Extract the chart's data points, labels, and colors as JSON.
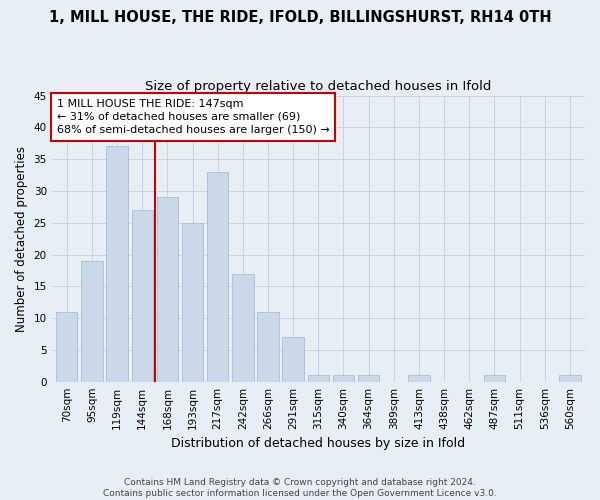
{
  "title": "1, MILL HOUSE, THE RIDE, IFOLD, BILLINGSHURST, RH14 0TH",
  "subtitle": "Size of property relative to detached houses in Ifold",
  "xlabel": "Distribution of detached houses by size in Ifold",
  "ylabel": "Number of detached properties",
  "bar_labels": [
    "70sqm",
    "95sqm",
    "119sqm",
    "144sqm",
    "168sqm",
    "193sqm",
    "217sqm",
    "242sqm",
    "266sqm",
    "291sqm",
    "315sqm",
    "340sqm",
    "364sqm",
    "389sqm",
    "413sqm",
    "438sqm",
    "462sqm",
    "487sqm",
    "511sqm",
    "536sqm",
    "560sqm"
  ],
  "bar_values": [
    11,
    19,
    37,
    27,
    29,
    25,
    33,
    17,
    11,
    7,
    1,
    1,
    1,
    0,
    1,
    0,
    0,
    1,
    0,
    0,
    1
  ],
  "bar_color": "#c9d9ea",
  "bar_edge_color": "#a8bfd0",
  "vline_x": 3.5,
  "vline_color": "#cc0000",
  "ylim": [
    0,
    45
  ],
  "yticks": [
    0,
    5,
    10,
    15,
    20,
    25,
    30,
    35,
    40,
    45
  ],
  "annotation_text": "1 MILL HOUSE THE RIDE: 147sqm\n← 31% of detached houses are smaller (69)\n68% of semi-detached houses are larger (150) →",
  "annotation_box_facecolor": "#ffffff",
  "annotation_box_edgecolor": "#cc0000",
  "footer": "Contains HM Land Registry data © Crown copyright and database right 2024.\nContains public sector information licensed under the Open Government Licence v3.0.",
  "fig_bg_color": "#e8eef5",
  "plot_bg_color": "#e8eef5",
  "grid_color": "#c5cfe0",
  "title_fontsize": 10.5,
  "subtitle_fontsize": 9.5,
  "xlabel_fontsize": 9,
  "ylabel_fontsize": 8.5,
  "tick_fontsize": 7.5,
  "footer_fontsize": 6.5,
  "annot_fontsize": 8
}
